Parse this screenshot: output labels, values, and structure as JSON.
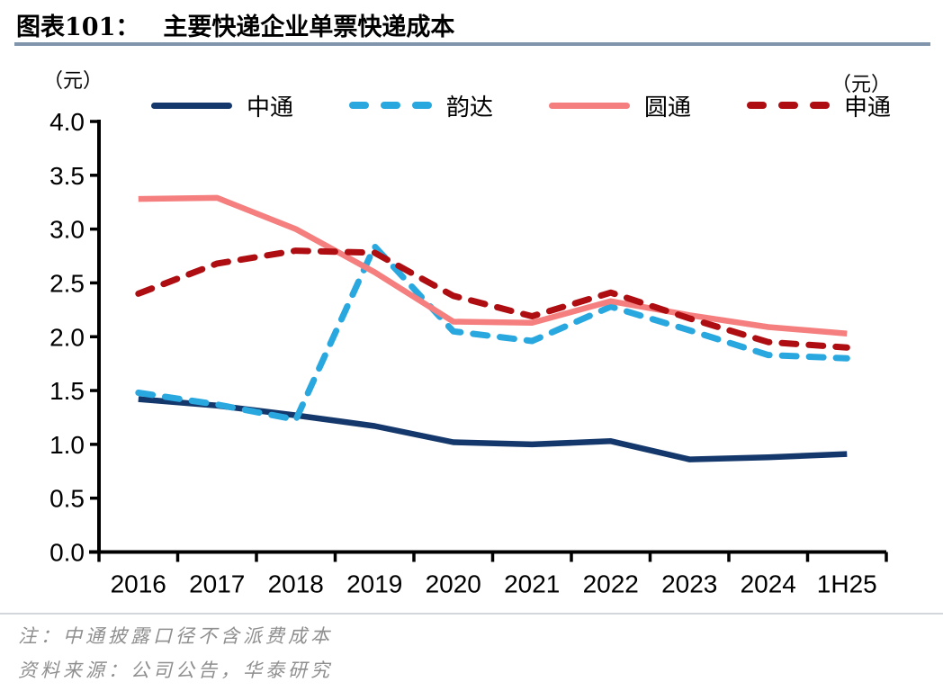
{
  "figure": {
    "label": "图表101：",
    "title": "主要快递企业单票快递成本"
  },
  "unit_label_left": "（元）",
  "unit_label_right": "（元）",
  "notes": {
    "note": "注：中通披露口径不含派费成本",
    "source": "资料来源：公司公告，华泰研究"
  },
  "colors": {
    "title_rule": "#8094AB",
    "axis": "#000000",
    "note_text": "#8F8F8F",
    "note_rule": "#D3D7DC"
  },
  "chart_data": {
    "type": "line",
    "title": "主要快递企业单票快递成本",
    "xlabel": "",
    "ylabel": "（元）",
    "ylim": [
      0.0,
      4.0
    ],
    "ytick_step": 0.5,
    "grid": false,
    "legend_position": "top",
    "categories": [
      "2016",
      "2017",
      "2018",
      "2019",
      "2020",
      "2021",
      "2022",
      "2023",
      "2024",
      "1H25"
    ],
    "series": [
      {
        "name": "中通",
        "style": "solid",
        "color": "#14386B",
        "values": [
          1.42,
          1.36,
          1.27,
          1.17,
          1.02,
          1.0,
          1.03,
          0.86,
          0.88,
          0.91
        ]
      },
      {
        "name": "韵达",
        "style": "dashed",
        "color": "#29A8E0",
        "values": [
          1.48,
          1.37,
          1.23,
          2.84,
          2.05,
          1.96,
          2.28,
          2.06,
          1.83,
          1.8
        ]
      },
      {
        "name": "圆通",
        "style": "solid",
        "color": "#F57E7E",
        "values": [
          3.28,
          3.29,
          3.0,
          2.6,
          2.14,
          2.13,
          2.33,
          2.2,
          2.09,
          2.03
        ]
      },
      {
        "name": "申通",
        "style": "dashed",
        "color": "#AE0E12",
        "values": [
          2.4,
          2.68,
          2.8,
          2.78,
          2.38,
          2.19,
          2.41,
          2.17,
          1.95,
          1.9
        ]
      }
    ]
  }
}
